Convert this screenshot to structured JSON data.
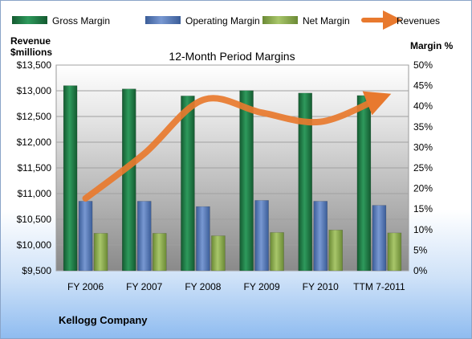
{
  "chart_data": {
    "type": "bar",
    "title": "12-Month Period Margins",
    "categories": [
      "FY 2006",
      "FY 2007",
      "FY 2008",
      "FY 2009",
      "FY 2010",
      "TTM 7-2011"
    ],
    "series": [
      {
        "name": "Gross Margin",
        "axis": "right",
        "color": "#1f7a45",
        "values": [
          45.0,
          44.2,
          42.5,
          43.8,
          43.2,
          42.6
        ]
      },
      {
        "name": "Operating Margin",
        "axis": "right",
        "color": "#5a7fc0",
        "values": [
          16.9,
          16.9,
          15.6,
          17.1,
          16.9,
          15.9
        ]
      },
      {
        "name": "Net Margin",
        "axis": "right",
        "color": "#8fae50",
        "values": [
          9.1,
          9.1,
          8.5,
          9.3,
          9.9,
          9.2
        ]
      },
      {
        "name": "Revenues",
        "axis": "left",
        "type": "line",
        "color": "#e8792e",
        "values": [
          10907,
          11776,
          12822,
          12575,
          12397,
          12850
        ]
      }
    ],
    "ylabel_left": "Revenue $millions",
    "ylabel_right": "Margin %",
    "ylim_left": [
      9500,
      13500
    ],
    "yticks_left": [
      "$9,500",
      "$10,000",
      "$10,500",
      "$11,000",
      "$11,500",
      "$12,000",
      "$12,500",
      "$13,000",
      "$13,500"
    ],
    "ylim_right": [
      0,
      50
    ],
    "yticks_right": [
      "0%",
      "5%",
      "10%",
      "15%",
      "20%",
      "25%",
      "30%",
      "35%",
      "40%",
      "45%",
      "50%"
    ],
    "grid": true,
    "legend_position": "top",
    "footer": "Kellogg Company"
  },
  "colors": {
    "gross": "#1f7a45",
    "operating": "#5a7fc0",
    "net": "#8fae50",
    "revenue": "#e8792e",
    "plot_bg_top": "#ffffff",
    "plot_bg_bottom": "#8d8d8d"
  }
}
